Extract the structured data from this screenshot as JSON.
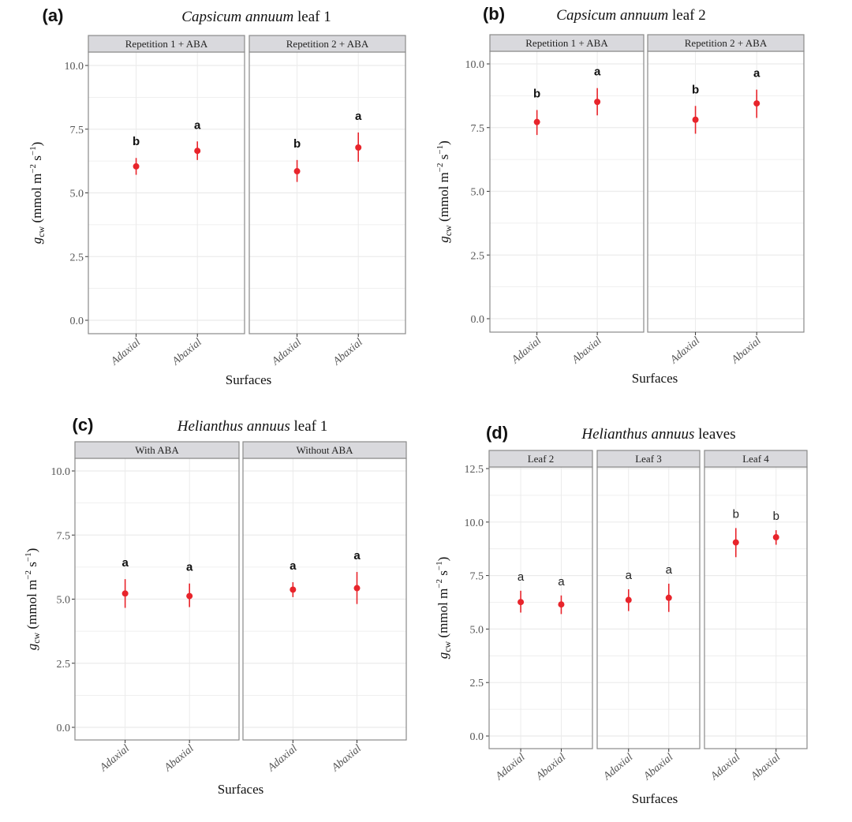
{
  "colors": {
    "point": "#e8242b",
    "strip_bg": "#d9d9dd",
    "grid": "#ebebeb",
    "frame": "#8a8a8a"
  },
  "chart_data": [
    {
      "type": "scatter",
      "panel_letter": "(a)",
      "title_italic": "Capsicum annuum",
      "title_rest": " leaf 1",
      "xlabel": "Surfaces",
      "ylabel": "g_cw (mmol m^-2 s^-1)",
      "ylim": [
        -0.5,
        10.5
      ],
      "yticks": [
        0.0,
        2.5,
        5.0,
        7.5,
        10.0
      ],
      "ytick_labels": [
        "0.0",
        "2.5",
        "5.0",
        "7.5",
        "10.0"
      ],
      "grid": true,
      "sig_style": "bold",
      "categories": [
        "Adaxial",
        "Abaxial"
      ],
      "facets": [
        {
          "label": "Repetition 1 + ABA",
          "points": [
            {
              "x": "Adaxial",
              "y": 6.04,
              "lower": 5.71,
              "upper": 6.37,
              "sig": "b"
            },
            {
              "x": "Abaxial",
              "y": 6.65,
              "lower": 6.29,
              "upper": 7.02,
              "sig": "a"
            }
          ]
        },
        {
          "label": "Repetition 2 + ABA",
          "points": [
            {
              "x": "Adaxial",
              "y": 5.85,
              "lower": 5.43,
              "upper": 6.29,
              "sig": "b"
            },
            {
              "x": "Abaxial",
              "y": 6.78,
              "lower": 6.22,
              "upper": 7.37,
              "sig": "a"
            }
          ]
        }
      ]
    },
    {
      "type": "scatter",
      "panel_letter": "(b)",
      "title_italic": "Capsicum annuum",
      "title_rest": " leaf 2",
      "xlabel": "Surfaces",
      "ylabel": "g_cw (mmol m^-2 s^-1)",
      "ylim": [
        -0.5,
        10.5
      ],
      "yticks": [
        0.0,
        2.5,
        5.0,
        7.5,
        10.0
      ],
      "ytick_labels": [
        "0.0",
        "2.5",
        "5.0",
        "7.5",
        "10.0"
      ],
      "grid": true,
      "sig_style": "bold",
      "categories": [
        "Adaxial",
        "Abaxial"
      ],
      "facets": [
        {
          "label": "Repetition 1 + ABA",
          "points": [
            {
              "x": "Adaxial",
              "y": 7.72,
              "lower": 7.21,
              "upper": 8.19,
              "sig": "b"
            },
            {
              "x": "Abaxial",
              "y": 8.51,
              "lower": 7.98,
              "upper": 9.05,
              "sig": "a"
            }
          ]
        },
        {
          "label": "Repetition 2 + ABA",
          "points": [
            {
              "x": "Adaxial",
              "y": 7.81,
              "lower": 7.26,
              "upper": 8.35,
              "sig": "b"
            },
            {
              "x": "Abaxial",
              "y": 8.45,
              "lower": 7.88,
              "upper": 8.99,
              "sig": "a"
            }
          ]
        }
      ]
    },
    {
      "type": "scatter",
      "panel_letter": "(c)",
      "title_italic": "Helianthus annuus",
      "title_rest": " leaf 1",
      "xlabel": "Surfaces",
      "ylabel": "g_cw (mmol m^-2 s^-1)",
      "ylim": [
        -0.5,
        10.5
      ],
      "yticks": [
        0.0,
        2.5,
        5.0,
        7.5,
        10.0
      ],
      "ytick_labels": [
        "0.0",
        "2.5",
        "5.0",
        "7.5",
        "10.0"
      ],
      "grid": true,
      "sig_style": "bold",
      "categories": [
        "Adaxial",
        "Abaxial"
      ],
      "facets": [
        {
          "label": "With ABA",
          "points": [
            {
              "x": "Adaxial",
              "y": 5.22,
              "lower": 4.66,
              "upper": 5.78,
              "sig": "a"
            },
            {
              "x": "Abaxial",
              "y": 5.12,
              "lower": 4.69,
              "upper": 5.61,
              "sig": "a"
            }
          ]
        },
        {
          "label": "Without ABA",
          "points": [
            {
              "x": "Adaxial",
              "y": 5.37,
              "lower": 5.08,
              "upper": 5.66,
              "sig": "a"
            },
            {
              "x": "Abaxial",
              "y": 5.43,
              "lower": 4.81,
              "upper": 6.06,
              "sig": "a"
            }
          ]
        }
      ]
    },
    {
      "type": "scatter",
      "panel_letter": "(d)",
      "title_italic": "Helianthus annuus",
      "title_rest": " leaves",
      "xlabel": "Surfaces",
      "ylabel": "g_cw (mmol m^-2 s^-1)",
      "ylim": [
        -0.5,
        12.7
      ],
      "yticks": [
        0.0,
        2.5,
        5.0,
        7.5,
        10.0,
        12.5
      ],
      "ytick_labels": [
        "0.0",
        "2.5",
        "5.0",
        "7.5",
        "10.0",
        "12.5"
      ],
      "grid": true,
      "sig_style": "plain",
      "categories": [
        "Adaxial",
        "Abaxial"
      ],
      "facets": [
        {
          "label": "Leaf 2",
          "points": [
            {
              "x": "Adaxial",
              "y": 6.26,
              "lower": 5.77,
              "upper": 6.79,
              "sig": "a"
            },
            {
              "x": "Abaxial",
              "y": 6.15,
              "lower": 5.7,
              "upper": 6.57,
              "sig": "a"
            }
          ]
        },
        {
          "label": "Leaf 3",
          "points": [
            {
              "x": "Adaxial",
              "y": 6.36,
              "lower": 5.84,
              "upper": 6.86,
              "sig": "a"
            },
            {
              "x": "Abaxial",
              "y": 6.46,
              "lower": 5.8,
              "upper": 7.12,
              "sig": "a"
            }
          ]
        },
        {
          "label": "Leaf 4",
          "points": [
            {
              "x": "Adaxial",
              "y": 9.05,
              "lower": 8.36,
              "upper": 9.72,
              "sig": "b"
            },
            {
              "x": "Abaxial",
              "y": 9.29,
              "lower": 8.94,
              "upper": 9.62,
              "sig": "b"
            }
          ]
        }
      ]
    }
  ]
}
